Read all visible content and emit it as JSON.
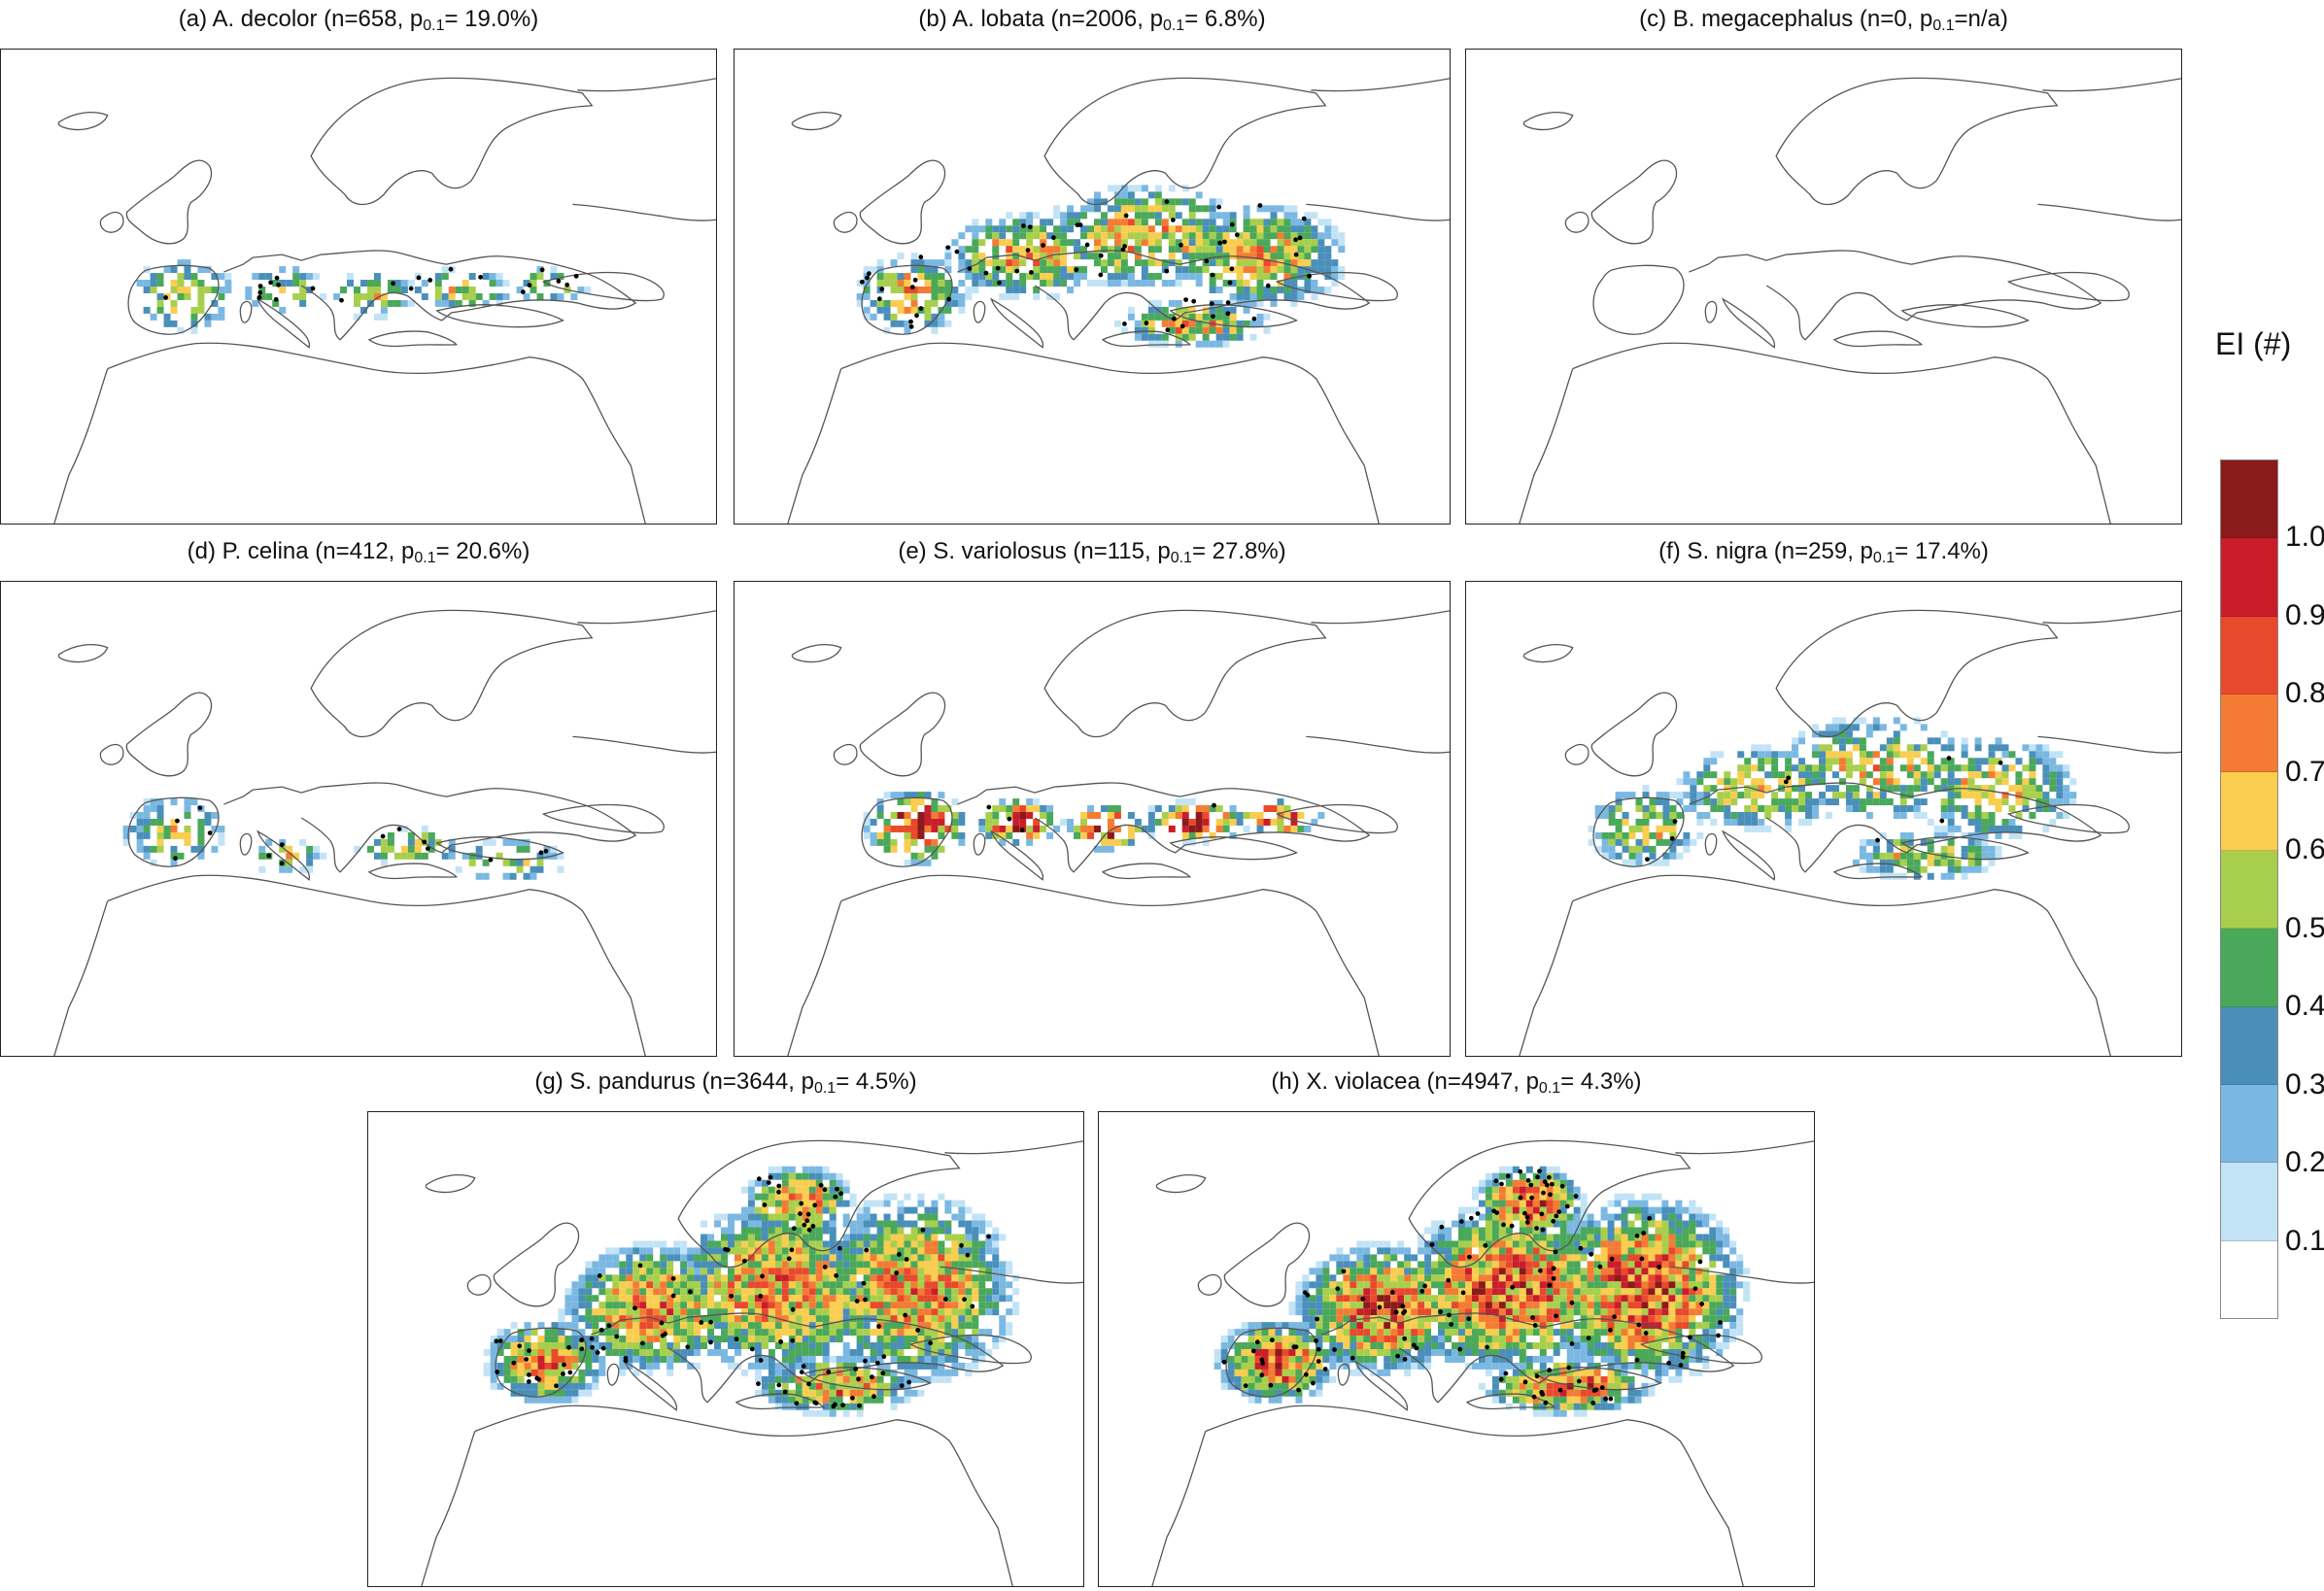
{
  "panels": [
    {
      "id": "a",
      "prefix": "(a) A. decolor (n=658, p",
      "sub": "0.1",
      "suffix": "= 19.0%)",
      "occurrences": 658,
      "p01_percent": 19.0,
      "relative_extent": 0.4,
      "relative_intensity": 0.45,
      "range": "mediterranean"
    },
    {
      "id": "b",
      "prefix": "(b) A. lobata (n=2006, p",
      "sub": "0.1",
      "suffix": "=  6.8%)",
      "occurrences": 2006,
      "p01_percent": 6.8,
      "relative_extent": 0.75,
      "relative_intensity": 0.55,
      "range": "temperate"
    },
    {
      "id": "c",
      "prefix": "(c) B. megacephalus (n=0, p",
      "sub": "0.1",
      "suffix": "=n/a)",
      "occurrences": 0,
      "p01_percent": null,
      "relative_extent": 0.0,
      "relative_intensity": 0.0,
      "range": "none"
    },
    {
      "id": "d",
      "prefix": "(d) P. celina (n=412, p",
      "sub": "0.1",
      "suffix": "= 20.6%)",
      "occurrences": 412,
      "p01_percent": 20.6,
      "relative_extent": 0.35,
      "relative_intensity": 0.45,
      "range": "south"
    },
    {
      "id": "e",
      "prefix": "(e) S. variolosus (n=115, p",
      "sub": "0.1",
      "suffix": "= 27.8%)",
      "occurrences": 115,
      "p01_percent": 27.8,
      "relative_extent": 0.6,
      "relative_intensity": 0.8,
      "range": "mediterranean"
    },
    {
      "id": "f",
      "prefix": "(f) S. nigra (n=259, p",
      "sub": "0.1",
      "suffix": "= 17.4%)",
      "occurrences": 259,
      "p01_percent": 17.4,
      "relative_extent": 0.6,
      "relative_intensity": 0.5,
      "range": "temperate"
    },
    {
      "id": "g",
      "prefix": "(g) S. pandurus (n=3644, p",
      "sub": "0.1",
      "suffix": "=  4.5%)",
      "occurrences": 3644,
      "p01_percent": 4.5,
      "relative_extent": 0.9,
      "relative_intensity": 0.6,
      "range": "wide"
    },
    {
      "id": "h",
      "prefix": "(h) X. violacea (n=4947, p",
      "sub": "0.1",
      "suffix": "=  4.3%)",
      "occurrences": 4947,
      "p01_percent": 4.3,
      "relative_extent": 0.95,
      "relative_intensity": 0.7,
      "range": "wide"
    }
  ],
  "legend": {
    "title": "EI (#)",
    "colors": [
      "#8b1a1a",
      "#c81e2b",
      "#e8492c",
      "#f47b34",
      "#f9cd4f",
      "#a8cf4c",
      "#4aa85a",
      "#4a8fba",
      "#7ab8e2",
      "#c2e3f6",
      "#ffffff"
    ],
    "labels": [
      "1.0",
      "0.9",
      "0.8",
      "0.7",
      "0.6",
      "0.5",
      "0.4",
      "0.3",
      "0.2",
      "0.1"
    ]
  }
}
